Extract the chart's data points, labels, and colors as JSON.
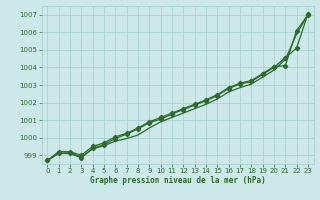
{
  "xlabel": "Graphe pression niveau de la mer (hPa)",
  "x": [
    0,
    1,
    2,
    3,
    4,
    5,
    6,
    7,
    8,
    9,
    10,
    11,
    12,
    13,
    14,
    15,
    16,
    17,
    18,
    19,
    20,
    21,
    22,
    23
  ],
  "line_smooth": [
    998.7,
    999.1,
    999.15,
    998.9,
    999.35,
    999.55,
    999.8,
    999.95,
    1000.15,
    1000.55,
    1000.9,
    1001.15,
    1001.4,
    1001.65,
    1001.9,
    1002.2,
    1002.6,
    1002.85,
    1003.05,
    1003.45,
    1003.85,
    1004.45,
    1005.9,
    1007.0
  ],
  "line_markers1": [
    998.7,
    999.2,
    999.2,
    999.0,
    999.5,
    999.7,
    1000.05,
    1000.25,
    1000.55,
    1000.9,
    1001.15,
    1001.4,
    1001.65,
    1001.9,
    1002.15,
    1002.45,
    1002.85,
    1003.1,
    1003.25,
    1003.65,
    1004.05,
    1004.1,
    1006.1,
    1007.0
  ],
  "line_markers2": [
    998.7,
    999.1,
    999.1,
    998.85,
    999.4,
    999.6,
    999.95,
    1000.2,
    1000.5,
    1000.85,
    1001.05,
    1001.35,
    1001.6,
    1001.85,
    1002.1,
    1002.4,
    1002.8,
    1003.05,
    1003.2,
    1003.6,
    1004.0,
    1004.55,
    1005.1,
    1007.05
  ],
  "line_color": "#2d6a2d",
  "bg_color": "#cce8e8",
  "grid_color": "#9fcfcf",
  "label_color": "#2d6a2d",
  "ylim": [
    998.5,
    1007.5
  ],
  "yticks": [
    999,
    1000,
    1001,
    1002,
    1003,
    1004,
    1005,
    1006,
    1007
  ],
  "xticks": [
    0,
    1,
    2,
    3,
    4,
    5,
    6,
    7,
    8,
    9,
    10,
    11,
    12,
    13,
    14,
    15,
    16,
    17,
    18,
    19,
    20,
    21,
    22,
    23
  ]
}
